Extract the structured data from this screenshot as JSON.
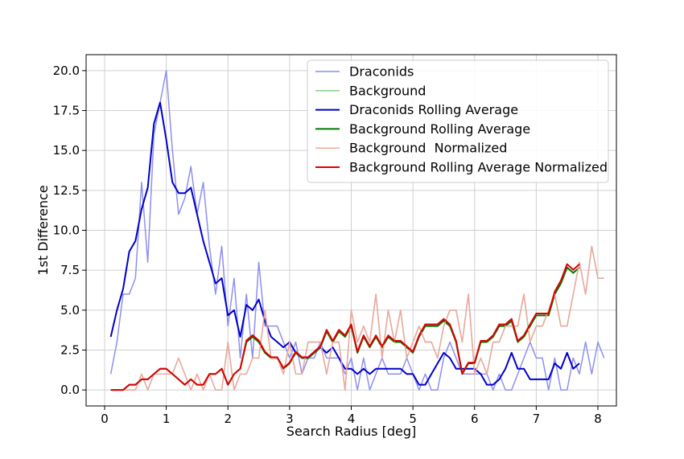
{
  "chart_data": {
    "type": "line",
    "title": "",
    "xlabel": "Search Radius [deg]",
    "ylabel": "1st Difference",
    "xlim": [
      -0.3,
      8.3
    ],
    "ylim": [
      -1.0,
      21.0
    ],
    "xticks": [
      0,
      1,
      2,
      3,
      4,
      5,
      6,
      7,
      8
    ],
    "yticks": [
      0.0,
      2.5,
      5.0,
      7.5,
      10.0,
      12.5,
      15.0,
      17.5,
      20.0
    ],
    "ytick_labels": [
      "0.0",
      "2.5",
      "5.0",
      "7.5",
      "10.0",
      "12.5",
      "15.0",
      "17.5",
      "20.0"
    ],
    "grid": true,
    "legend_position": "upper right",
    "x_start": 0.1,
    "x_step": 0.1,
    "series": [
      {
        "name": "Draconids",
        "color": "#8f8ff0",
        "width": 1.5,
        "values": [
          1,
          3,
          6,
          6,
          7,
          13,
          8,
          16,
          18,
          20,
          15,
          11,
          12,
          14,
          11,
          13,
          9,
          6,
          9,
          4,
          7,
          2,
          6,
          2,
          8,
          4,
          4,
          4,
          3,
          2,
          3,
          1,
          2,
          2,
          3,
          2,
          2,
          2,
          1,
          2,
          0,
          2,
          0,
          1,
          2,
          1,
          1,
          1,
          2,
          1,
          0,
          1,
          0,
          0,
          2,
          3,
          2,
          1,
          1,
          1,
          1,
          1,
          0,
          1,
          0,
          0,
          1,
          2,
          3,
          2,
          2,
          0,
          2,
          0,
          0,
          2,
          1,
          3,
          1,
          3,
          2
        ]
      },
      {
        "name": "Background",
        "color": "#88cc88",
        "width": 1.5,
        "values": [
          0,
          0,
          0,
          0,
          0,
          1,
          0,
          1,
          1,
          1,
          1,
          2,
          1,
          0,
          1,
          0,
          1,
          0,
          0,
          3,
          0,
          1,
          1,
          2,
          2,
          5,
          2,
          2,
          1,
          3,
          1,
          1,
          3,
          3,
          3,
          1,
          3,
          3,
          0,
          5,
          3,
          4,
          3,
          6,
          2,
          5,
          3,
          5,
          2,
          3,
          4,
          3,
          3,
          2,
          4,
          5,
          5,
          3,
          6,
          1,
          2,
          1,
          3,
          3,
          4,
          4,
          4,
          6,
          3,
          4,
          4,
          5,
          6,
          4,
          4,
          6,
          8,
          6,
          9,
          7,
          7
        ]
      },
      {
        "name": "Draconids Rolling Average",
        "color": "#0000cc",
        "width": 2.0,
        "values": [
          3.33,
          5.0,
          6.33,
          8.67,
          9.33,
          11.33,
          12.67,
          16.67,
          18.0,
          15.67,
          13.0,
          12.33,
          12.33,
          12.67,
          11.0,
          9.33,
          8.0,
          6.67,
          7.0,
          4.67,
          5.0,
          3.33,
          5.33,
          5.0,
          5.67,
          4.33,
          3.33,
          3.0,
          2.67,
          3.0,
          2.33,
          2.0,
          2.0,
          2.33,
          2.67,
          2.33,
          2.67,
          2.0,
          1.33,
          1.33,
          1.0,
          1.33,
          1.0,
          1.33,
          1.33,
          1.33,
          1.33,
          1.33,
          1.0,
          1.0,
          0.33,
          0.33,
          1.0,
          1.67,
          2.33,
          2.0,
          1.33,
          1.33,
          1.33,
          1.33,
          1.0,
          0.33,
          0.33,
          0.67,
          1.33,
          2.33,
          1.33,
          1.33,
          0.67,
          0.67,
          0.67,
          0.67,
          1.67,
          1.33,
          2.33,
          1.33,
          1.67
        ]
      },
      {
        "name": "Background Rolling Average",
        "color": "#007700",
        "width": 2.0,
        "values": [
          0,
          0,
          0,
          0.33,
          0.33,
          0.67,
          0.67,
          1.0,
          1.33,
          1.33,
          1.0,
          0.67,
          0.33,
          0.67,
          0.33,
          0.33,
          1.0,
          1.0,
          1.33,
          0.33,
          1.0,
          1.33,
          3.0,
          3.33,
          3.0,
          2.33,
          2.0,
          2.0,
          1.33,
          1.67,
          2.33,
          2.0,
          2.0,
          2.33,
          2.67,
          3.67,
          3.0,
          3.67,
          3.33,
          4.0,
          2.33,
          3.33,
          2.67,
          3.33,
          2.67,
          3.33,
          3.0,
          3.0,
          2.67,
          2.33,
          3.33,
          4.0,
          4.0,
          4.0,
          4.33,
          4.0,
          3.0,
          1.0,
          1.67,
          1.67,
          3.0,
          3.0,
          3.33,
          4.0,
          4.0,
          4.33,
          3.0,
          3.33,
          4.0,
          4.67,
          4.67,
          4.67,
          6.0,
          6.67,
          7.67,
          7.33,
          7.67
        ]
      },
      {
        "name": "Background  Normalized",
        "color": "#f0a8a0",
        "width": 1.5,
        "values": [
          0,
          0,
          0,
          0,
          0,
          1,
          0,
          1,
          1,
          1,
          1,
          2,
          1,
          0,
          1,
          0,
          1,
          0,
          0,
          3,
          0,
          1,
          1,
          2,
          2,
          5,
          2,
          2,
          1,
          3,
          1,
          1,
          3,
          3,
          3,
          1,
          3,
          3,
          0,
          5,
          3,
          4,
          3,
          6,
          2,
          5,
          3,
          5,
          2,
          3,
          4,
          3,
          3,
          2,
          4,
          5,
          5,
          3,
          6,
          1,
          2,
          1,
          3,
          3,
          4,
          4,
          4,
          6,
          3,
          4,
          4,
          5,
          6,
          4,
          4,
          6,
          8,
          6,
          9,
          7,
          7
        ]
      },
      {
        "name": "Background Rolling Average Normalized",
        "color": "#dd0000",
        "width": 2.0,
        "values": [
          0,
          0,
          0,
          0.33,
          0.33,
          0.67,
          0.67,
          1.0,
          1.33,
          1.33,
          1.0,
          0.67,
          0.33,
          0.67,
          0.33,
          0.33,
          1.0,
          1.0,
          1.33,
          0.33,
          1.0,
          1.33,
          3.1,
          3.43,
          3.1,
          2.4,
          2.05,
          2.05,
          1.37,
          1.71,
          2.4,
          2.05,
          2.05,
          2.4,
          2.74,
          3.77,
          3.08,
          3.77,
          3.42,
          4.11,
          2.4,
          3.42,
          2.74,
          3.42,
          2.74,
          3.42,
          3.08,
          3.08,
          2.74,
          2.4,
          3.42,
          4.11,
          4.11,
          4.11,
          4.45,
          4.11,
          3.08,
          1.03,
          1.71,
          1.71,
          3.08,
          3.08,
          3.42,
          4.11,
          4.11,
          4.45,
          3.08,
          3.42,
          4.11,
          4.79,
          4.79,
          4.79,
          6.16,
          6.85,
          7.88,
          7.53,
          7.88
        ]
      }
    ]
  }
}
